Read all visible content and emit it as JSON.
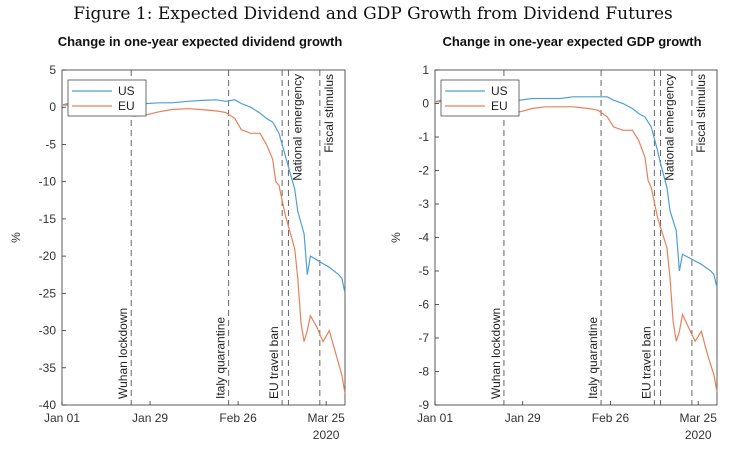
{
  "figure": {
    "caption": "Figure 1: Expected Dividend and GDP Growth from Dividend Futures"
  },
  "colors": {
    "US": "#4f9fd6",
    "EU": "#e9805a",
    "axis": "#333333",
    "vline": "#555555"
  },
  "chart_data": [
    {
      "type": "line",
      "title": "Change in one-year expected dividend growth",
      "xlabel": "",
      "ylabel": "%",
      "xlim": [
        "2020-01-01",
        "2020-03-31"
      ],
      "ylim": [
        -40,
        5
      ],
      "yticks": [
        5,
        0,
        -5,
        -10,
        -15,
        -20,
        -25,
        -30,
        -35,
        -40
      ],
      "xticks": [
        {
          "date": "2020-01-01",
          "label": "Jan 01"
        },
        {
          "date": "2020-01-29",
          "label": "Jan 29"
        },
        {
          "date": "2020-02-26",
          "label": "Feb 26"
        },
        {
          "date": "2020-03-25",
          "label": "Mar 25"
        }
      ],
      "year_label": "2020",
      "legend": {
        "position": "top-left",
        "entries": [
          "US",
          "EU"
        ]
      },
      "events": [
        {
          "date": "2020-01-23",
          "label": "Wuhan lockdown"
        },
        {
          "date": "2020-02-23",
          "label": "Italy quarantine"
        },
        {
          "date": "2020-03-11",
          "label": "EU travel ban"
        },
        {
          "date": "2020-03-13",
          "label": "National emergency"
        },
        {
          "date": "2020-03-23",
          "label": "Fiscal stimulus"
        }
      ],
      "series": [
        {
          "name": "US",
          "x": [
            "2020-01-01",
            "2020-01-03",
            "2020-01-06",
            "2020-01-09",
            "2020-01-13",
            "2020-01-17",
            "2020-01-21",
            "2020-01-24",
            "2020-01-28",
            "2020-02-01",
            "2020-02-05",
            "2020-02-10",
            "2020-02-14",
            "2020-02-19",
            "2020-02-22",
            "2020-02-25",
            "2020-02-27",
            "2020-03-01",
            "2020-03-04",
            "2020-03-06",
            "2020-03-08",
            "2020-03-10",
            "2020-03-12",
            "2020-03-13",
            "2020-03-15",
            "2020-03-16",
            "2020-03-18",
            "2020-03-19",
            "2020-03-20",
            "2020-03-22",
            "2020-03-24",
            "2020-03-26",
            "2020-03-29",
            "2020-03-30",
            "2020-03-31"
          ],
          "y": [
            0.3,
            0.5,
            0.2,
            0.4,
            0.4,
            0.5,
            0.4,
            0.5,
            0.5,
            0.6,
            0.6,
            0.8,
            0.9,
            1.0,
            0.8,
            1.0,
            0.5,
            0.0,
            -0.8,
            -1.5,
            -2.0,
            -3.5,
            -6.5,
            -8.0,
            -11.0,
            -14.0,
            -17.0,
            -22.5,
            -20.0,
            -20.5,
            -21.0,
            -21.5,
            -22.5,
            -23.0,
            -25.0
          ]
        },
        {
          "name": "EU",
          "x": [
            "2020-01-01",
            "2020-01-03",
            "2020-01-06",
            "2020-01-09",
            "2020-01-13",
            "2020-01-17",
            "2020-01-21",
            "2020-01-24",
            "2020-01-28",
            "2020-02-01",
            "2020-02-05",
            "2020-02-10",
            "2020-02-14",
            "2020-02-19",
            "2020-02-22",
            "2020-02-25",
            "2020-02-27",
            "2020-03-01",
            "2020-03-04",
            "2020-03-06",
            "2020-03-08",
            "2020-03-09",
            "2020-03-10",
            "2020-03-12",
            "2020-03-13",
            "2020-03-15",
            "2020-03-16",
            "2020-03-17",
            "2020-03-18",
            "2020-03-19",
            "2020-03-20",
            "2020-03-22",
            "2020-03-24",
            "2020-03-26",
            "2020-03-28",
            "2020-03-30",
            "2020-03-31"
          ],
          "y": [
            0.3,
            0.3,
            -0.5,
            -1.0,
            -1.0,
            -0.8,
            -1.0,
            -1.2,
            -1.0,
            -0.6,
            -0.3,
            -0.2,
            -0.3,
            -0.5,
            -0.7,
            -1.5,
            -3.0,
            -3.5,
            -3.5,
            -5.0,
            -7.0,
            -10.0,
            -10.5,
            -14.5,
            -16.0,
            -19.0,
            -23.0,
            -29.0,
            -31.5,
            -30.0,
            -28.0,
            -29.5,
            -31.5,
            -30.0,
            -33.0,
            -36.0,
            -38.5
          ]
        }
      ]
    },
    {
      "type": "line",
      "title": "Change in one-year expected GDP growth",
      "xlabel": "",
      "ylabel": "%",
      "xlim": [
        "2020-01-01",
        "2020-03-31"
      ],
      "ylim": [
        -9,
        1
      ],
      "yticks": [
        1,
        0,
        -1,
        -2,
        -3,
        -4,
        -5,
        -6,
        -7,
        -8,
        -9
      ],
      "xticks": [
        {
          "date": "2020-01-01",
          "label": "Jan 01"
        },
        {
          "date": "2020-01-29",
          "label": "Jan 29"
        },
        {
          "date": "2020-02-26",
          "label": "Feb 26"
        },
        {
          "date": "2020-03-25",
          "label": "Mar 25"
        }
      ],
      "year_label": "2020",
      "legend": {
        "position": "top-left",
        "entries": [
          "US",
          "EU"
        ]
      },
      "events": [
        {
          "date": "2020-01-23",
          "label": "Wuhan lockdown"
        },
        {
          "date": "2020-02-23",
          "label": "Italy quarantine"
        },
        {
          "date": "2020-03-11",
          "label": "EU travel ban"
        },
        {
          "date": "2020-03-13",
          "label": "National emergency"
        },
        {
          "date": "2020-03-23",
          "label": "Fiscal stimulus"
        }
      ],
      "series": [
        {
          "name": "US",
          "x": [
            "2020-01-01",
            "2020-01-03",
            "2020-01-06",
            "2020-01-09",
            "2020-01-13",
            "2020-01-17",
            "2020-01-21",
            "2020-01-24",
            "2020-01-28",
            "2020-02-01",
            "2020-02-05",
            "2020-02-10",
            "2020-02-14",
            "2020-02-19",
            "2020-02-22",
            "2020-02-25",
            "2020-02-27",
            "2020-03-01",
            "2020-03-04",
            "2020-03-06",
            "2020-03-08",
            "2020-03-10",
            "2020-03-12",
            "2020-03-13",
            "2020-03-15",
            "2020-03-16",
            "2020-03-18",
            "2020-03-19",
            "2020-03-20",
            "2020-03-22",
            "2020-03-24",
            "2020-03-26",
            "2020-03-29",
            "2020-03-30",
            "2020-03-31"
          ],
          "y": [
            0.05,
            0.1,
            0.05,
            0.05,
            0.1,
            0.1,
            0.05,
            0.1,
            0.1,
            0.15,
            0.15,
            0.15,
            0.2,
            0.2,
            0.2,
            0.2,
            0.1,
            0.0,
            -0.15,
            -0.3,
            -0.4,
            -0.7,
            -1.4,
            -1.8,
            -2.5,
            -3.2,
            -3.8,
            -5.0,
            -4.5,
            -4.6,
            -4.7,
            -4.8,
            -5.0,
            -5.1,
            -5.5
          ]
        },
        {
          "name": "EU",
          "x": [
            "2020-01-01",
            "2020-01-03",
            "2020-01-06",
            "2020-01-09",
            "2020-01-13",
            "2020-01-17",
            "2020-01-21",
            "2020-01-24",
            "2020-01-28",
            "2020-02-01",
            "2020-02-05",
            "2020-02-10",
            "2020-02-14",
            "2020-02-19",
            "2020-02-22",
            "2020-02-25",
            "2020-02-27",
            "2020-03-01",
            "2020-03-04",
            "2020-03-06",
            "2020-03-08",
            "2020-03-09",
            "2020-03-10",
            "2020-03-12",
            "2020-03-13",
            "2020-03-15",
            "2020-03-16",
            "2020-03-17",
            "2020-03-18",
            "2020-03-19",
            "2020-03-20",
            "2020-03-22",
            "2020-03-24",
            "2020-03-26",
            "2020-03-28",
            "2020-03-30",
            "2020-03-31"
          ],
          "y": [
            0.05,
            0.05,
            -0.15,
            -0.25,
            -0.25,
            -0.2,
            -0.25,
            -0.3,
            -0.25,
            -0.15,
            -0.1,
            -0.1,
            -0.1,
            -0.15,
            -0.2,
            -0.4,
            -0.7,
            -0.8,
            -0.8,
            -1.1,
            -1.6,
            -2.3,
            -2.5,
            -3.4,
            -3.7,
            -4.3,
            -5.2,
            -6.5,
            -7.1,
            -6.8,
            -6.3,
            -6.7,
            -7.1,
            -6.8,
            -7.5,
            -8.1,
            -8.6
          ]
        }
      ]
    }
  ]
}
